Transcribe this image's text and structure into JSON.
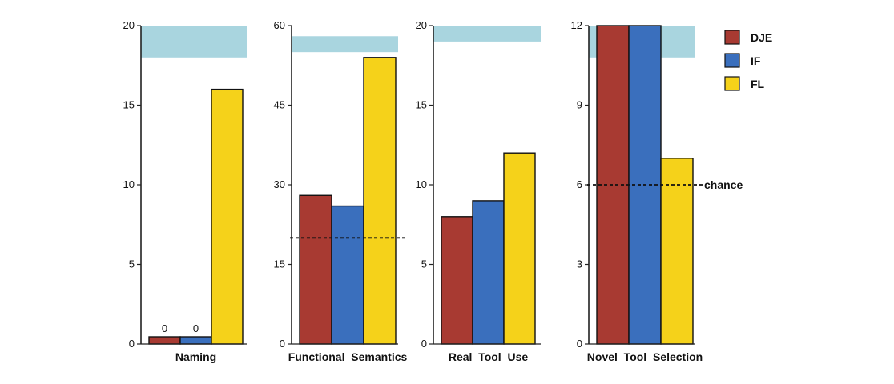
{
  "legend": {
    "items": [
      {
        "name": "DJE",
        "color": "#a83a32"
      },
      {
        "name": "IF",
        "color": "#3a6fbd"
      },
      {
        "name": "FL",
        "color": "#f5d21a"
      }
    ]
  },
  "colors": {
    "band": "#a9d5df",
    "axis": "#222222"
  },
  "chart_data": [
    {
      "type": "bar",
      "xlabel": "Naming",
      "ylim": [
        0,
        20
      ],
      "yticks": [
        0,
        5,
        10,
        15,
        20
      ],
      "categories": [
        "DJE",
        "IF",
        "FL"
      ],
      "values": [
        0,
        0,
        16
      ],
      "data_labels": [
        "0",
        "0",
        ""
      ],
      "normal_range": [
        18,
        20
      ],
      "chance": null,
      "chance_label": ""
    },
    {
      "type": "bar",
      "xlabel": "Functional  Semantics",
      "ylim": [
        0,
        60
      ],
      "yticks": [
        0,
        15,
        30,
        45,
        60
      ],
      "categories": [
        "DJE",
        "IF",
        "FL"
      ],
      "values": [
        28,
        26,
        54
      ],
      "data_labels": [
        "",
        "",
        ""
      ],
      "normal_range": [
        55,
        58
      ],
      "chance": 20,
      "chance_label": ""
    },
    {
      "type": "bar",
      "xlabel": "Real  Tool  Use",
      "ylim": [
        0,
        20
      ],
      "yticks": [
        0,
        5,
        10,
        15,
        20
      ],
      "categories": [
        "DJE",
        "IF",
        "FL"
      ],
      "values": [
        8,
        9,
        12
      ],
      "data_labels": [
        "",
        "",
        ""
      ],
      "normal_range": [
        19,
        20
      ],
      "chance": null,
      "chance_label": ""
    },
    {
      "type": "bar",
      "xlabel": "Novel  Tool  Selection",
      "ylim": [
        0,
        12
      ],
      "yticks": [
        0,
        3,
        6,
        9,
        12
      ],
      "categories": [
        "DJE",
        "IF",
        "FL"
      ],
      "values": [
        12,
        12,
        7
      ],
      "data_labels": [
        "",
        "",
        ""
      ],
      "normal_range": [
        10.8,
        12
      ],
      "chance": 6,
      "chance_label": "chance"
    }
  ]
}
